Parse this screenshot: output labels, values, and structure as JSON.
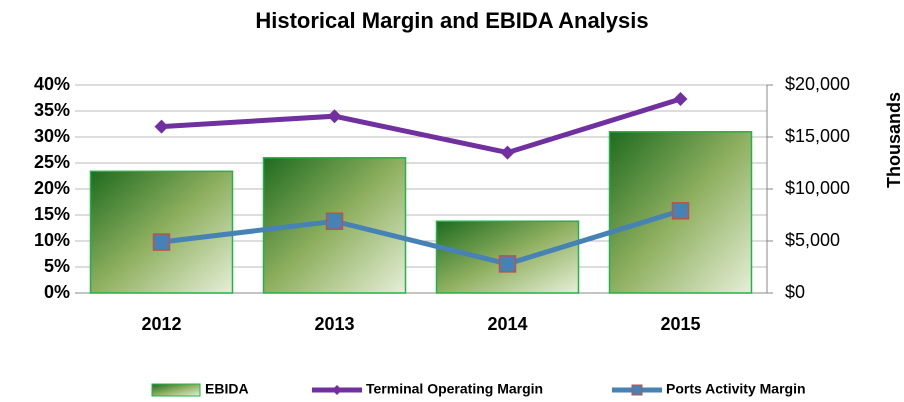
{
  "chart_data": {
    "type": "bar_line",
    "title": "Historical Margin and EBIDA Analysis",
    "categories": [
      "2012",
      "2013",
      "2014",
      "2015"
    ],
    "series": [
      {
        "name": "EBIDA",
        "type": "bar",
        "axis": "y2",
        "color": "#2e8b2e",
        "values": [
          11700,
          13000,
          6900,
          15500
        ]
      },
      {
        "name": "Terminal Operating Margin",
        "type": "line",
        "marker": "diamond",
        "color": "#7030a0",
        "values": [
          32,
          34,
          27,
          37.3
        ]
      },
      {
        "name": "Ports Activity Margin",
        "type": "line",
        "marker": "square",
        "color": "#4682b4",
        "values": [
          9.8,
          13.8,
          5.6,
          15.8
        ]
      }
    ],
    "ylim": [
      0,
      40
    ],
    "yticks": [
      {
        "value": 0,
        "label": "0%"
      },
      {
        "value": 5,
        "label": "5%"
      },
      {
        "value": 10,
        "label": "10%"
      },
      {
        "value": 15,
        "label": "15%"
      },
      {
        "value": 20,
        "label": "20%"
      },
      {
        "value": 25,
        "label": "25%"
      },
      {
        "value": 30,
        "label": "30%"
      },
      {
        "value": 35,
        "label": "35%"
      },
      {
        "value": 40,
        "label": "40%"
      }
    ],
    "y2label": "Thousands",
    "y2lim": [
      0,
      20000
    ],
    "y2ticks": [
      {
        "value": 0,
        "label": "$0"
      },
      {
        "value": 5000,
        "label": "$5,000"
      },
      {
        "value": 10000,
        "label": "$10,000"
      },
      {
        "value": 15000,
        "label": "$15,000"
      },
      {
        "value": 20000,
        "label": "$20,000"
      }
    ],
    "grid": true,
    "legend": "bottom"
  }
}
